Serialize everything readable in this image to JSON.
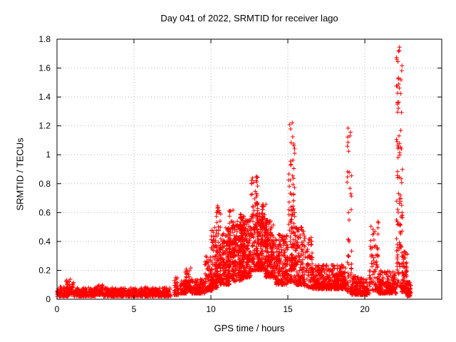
{
  "chart": {
    "title": "Day 041 of 2022, SRMTID for receiver lago",
    "xlabel": "GPS time / hours",
    "ylabel": "SRMTID / TECUs"
  },
  "chart_data": {
    "type": "scatter",
    "title": "Day 041 of 2022, SRMTID for receiver lago",
    "xlabel": "GPS time / hours",
    "ylabel": "SRMTID / TECUs",
    "xlim": [
      0,
      25
    ],
    "ylim": [
      0,
      1.8
    ],
    "grid": true,
    "marker": "plus",
    "colors": {
      "marker": "#ff0000",
      "grid": "#b5b5b5",
      "axis": "#000000"
    },
    "seed": 41,
    "xticks": [
      {
        "v": 0,
        "label": "0"
      },
      {
        "v": 5,
        "label": "5"
      },
      {
        "v": 10,
        "label": "10"
      },
      {
        "v": 15,
        "label": "15"
      },
      {
        "v": 20,
        "label": "20"
      }
    ],
    "yticks": [
      {
        "v": 0,
        "label": "0"
      },
      {
        "v": 0.2,
        "label": "0.2"
      },
      {
        "v": 0.4,
        "label": "0.4"
      },
      {
        "v": 0.6,
        "label": "0.6"
      },
      {
        "v": 0.8,
        "label": "0.8"
      },
      {
        "v": 1.0,
        "label": "1"
      },
      {
        "v": 1.2,
        "label": "1.2"
      },
      {
        "v": 1.4,
        "label": "1.4"
      },
      {
        "v": 1.6,
        "label": "1.6"
      },
      {
        "v": 1.8,
        "label": "1.8"
      }
    ],
    "prominent_peaks": [
      {
        "x": 12.85,
        "y": 0.85
      },
      {
        "x": 15.3,
        "y": 1.22
      },
      {
        "x": 19.05,
        "y": 1.21
      },
      {
        "x": 22.3,
        "y": 1.77
      }
    ],
    "point_clusters": [
      {
        "x0": 0.0,
        "x1": 0.75,
        "n": 90,
        "ymin": 0.02,
        "ymax": 0.09,
        "k": 1.8
      },
      {
        "x0": 0.6,
        "x1": 1.1,
        "n": 50,
        "ymin": 0.03,
        "ymax": 0.14,
        "k": 2.0
      },
      {
        "x0": 1.1,
        "x1": 2.5,
        "n": 170,
        "ymin": 0.02,
        "ymax": 0.08,
        "k": 1.8
      },
      {
        "x0": 2.5,
        "x1": 3.0,
        "n": 60,
        "ymin": 0.03,
        "ymax": 0.1,
        "k": 2.0
      },
      {
        "x0": 3.0,
        "x1": 5.2,
        "n": 260,
        "ymin": 0.02,
        "ymax": 0.08,
        "k": 1.8
      },
      {
        "x0": 5.2,
        "x1": 6.0,
        "n": 90,
        "ymin": 0.02,
        "ymax": 0.09,
        "k": 1.8
      },
      {
        "x0": 6.0,
        "x1": 7.4,
        "n": 160,
        "ymin": 0.02,
        "ymax": 0.08,
        "k": 1.8
      },
      {
        "x0": 7.6,
        "x1": 7.9,
        "n": 40,
        "ymin": 0.03,
        "ymax": 0.17,
        "k": 2.2
      },
      {
        "x0": 8.0,
        "x1": 8.4,
        "n": 60,
        "ymin": 0.04,
        "ymax": 0.13,
        "k": 1.8
      },
      {
        "x0": 8.3,
        "x1": 8.7,
        "n": 60,
        "ymin": 0.06,
        "ymax": 0.22,
        "k": 1.8
      },
      {
        "x0": 8.7,
        "x1": 9.6,
        "n": 120,
        "ymin": 0.04,
        "ymax": 0.14,
        "k": 1.8
      },
      {
        "x0": 9.6,
        "x1": 10.1,
        "n": 90,
        "ymin": 0.06,
        "ymax": 0.3,
        "k": 2.0
      },
      {
        "x0": 10.0,
        "x1": 10.45,
        "n": 110,
        "ymin": 0.08,
        "ymax": 0.5,
        "k": 1.8
      },
      {
        "x0": 10.35,
        "x1": 10.65,
        "n": 70,
        "ymin": 0.12,
        "ymax": 0.66,
        "k": 1.6
      },
      {
        "x0": 10.6,
        "x1": 11.2,
        "n": 160,
        "ymin": 0.1,
        "ymax": 0.5,
        "k": 1.6
      },
      {
        "x0": 11.1,
        "x1": 11.45,
        "n": 80,
        "ymin": 0.15,
        "ymax": 0.63,
        "k": 1.6
      },
      {
        "x0": 11.4,
        "x1": 12.1,
        "n": 200,
        "ymin": 0.12,
        "ymax": 0.55,
        "k": 1.5
      },
      {
        "x0": 11.9,
        "x1": 12.15,
        "n": 60,
        "ymin": 0.2,
        "ymax": 0.6,
        "k": 1.5
      },
      {
        "x0": 12.1,
        "x1": 12.6,
        "n": 150,
        "ymin": 0.15,
        "ymax": 0.55,
        "k": 1.5
      },
      {
        "x0": 12.6,
        "x1": 13.05,
        "n": 130,
        "ymin": 0.2,
        "ymax": 0.85,
        "k": 1.6
      },
      {
        "x0": 13.0,
        "x1": 13.35,
        "n": 110,
        "ymin": 0.2,
        "ymax": 0.6,
        "k": 1.5
      },
      {
        "x0": 13.3,
        "x1": 13.6,
        "n": 80,
        "ymin": 0.2,
        "ymax": 0.66,
        "k": 1.5
      },
      {
        "x0": 13.55,
        "x1": 14.2,
        "n": 180,
        "ymin": 0.15,
        "ymax": 0.55,
        "k": 1.5
      },
      {
        "x0": 14.2,
        "x1": 15.0,
        "n": 200,
        "ymin": 0.1,
        "ymax": 0.45,
        "k": 1.7
      },
      {
        "x0": 15.05,
        "x1": 15.45,
        "n": 90,
        "ymin": 0.12,
        "ymax": 1.23,
        "k": 2.4
      },
      {
        "x0": 15.2,
        "x1": 15.5,
        "n": 60,
        "ymin": 0.2,
        "ymax": 0.65,
        "k": 1.4
      },
      {
        "x0": 15.5,
        "x1": 16.1,
        "n": 140,
        "ymin": 0.1,
        "ymax": 0.5,
        "k": 1.8
      },
      {
        "x0": 16.1,
        "x1": 16.6,
        "n": 80,
        "ymin": 0.08,
        "ymax": 0.45,
        "k": 2.0
      },
      {
        "x0": 16.6,
        "x1": 18.8,
        "n": 380,
        "ymin": 0.07,
        "ymax": 0.24,
        "k": 1.7
      },
      {
        "x0": 18.85,
        "x1": 19.15,
        "n": 55,
        "ymin": 0.05,
        "ymax": 1.21,
        "k": 2.6
      },
      {
        "x0": 19.15,
        "x1": 20.3,
        "n": 190,
        "ymin": 0.03,
        "ymax": 0.16,
        "k": 1.8
      },
      {
        "x0": 20.3,
        "x1": 20.9,
        "n": 90,
        "ymin": 0.06,
        "ymax": 0.55,
        "k": 2.2
      },
      {
        "x0": 20.9,
        "x1": 22.05,
        "n": 190,
        "ymin": 0.04,
        "ymax": 0.2,
        "k": 1.8
      },
      {
        "x0": 22.05,
        "x1": 22.45,
        "n": 110,
        "ymin": 0.08,
        "ymax": 1.77,
        "k": 1.6
      },
      {
        "x0": 22.4,
        "x1": 22.75,
        "n": 90,
        "ymin": 0.05,
        "ymax": 0.35,
        "k": 2.0
      },
      {
        "x0": 22.75,
        "x1": 23.0,
        "n": 50,
        "ymin": 0.02,
        "ymax": 0.12,
        "k": 1.8
      }
    ]
  }
}
